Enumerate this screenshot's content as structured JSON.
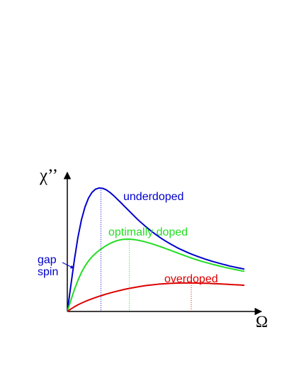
{
  "chart_data": {
    "type": "line",
    "ylabel": "χ’’",
    "xlabel": "Ω",
    "annotation": {
      "line1": "gap",
      "line2": "spin",
      "color": "#0000cc"
    },
    "series": [
      {
        "name": "underdoped",
        "color": "#0000cc",
        "x": [
          0,
          2,
          4,
          6,
          8,
          10,
          12,
          14,
          16,
          18,
          20,
          22,
          24,
          26,
          28,
          30,
          32,
          34,
          36,
          38,
          40,
          42,
          44,
          46,
          48,
          50,
          52,
          54,
          56,
          58,
          60,
          62,
          64,
          66,
          68,
          70,
          72,
          74,
          76,
          78,
          80,
          82,
          84,
          86,
          88,
          90,
          92,
          94,
          96,
          98,
          100
        ],
        "y": [
          0,
          21.2,
          42.1,
          60.4,
          74.8,
          85.2,
          92.5,
          97.1,
          99.7,
          100.6,
          100.3,
          99.1,
          97.1,
          94.6,
          91.8,
          89.0,
          86.1,
          83.2,
          80.3,
          77.4,
          74.6,
          72.0,
          69.5,
          67.1,
          64.8,
          62.7,
          60.6,
          58.7,
          56.9,
          55.2,
          53.6,
          52.0,
          50.6,
          49.3,
          48.0,
          46.8,
          45.7,
          44.6,
          43.6,
          42.6,
          41.7,
          40.8,
          40.0,
          39.2,
          38.4,
          37.7,
          36.9,
          36.3,
          35.7,
          35.1,
          34.5
        ],
        "peak_x": 19
      },
      {
        "name": "optimally doped",
        "color": "#22dd22",
        "x": [
          0,
          2,
          4,
          6,
          8,
          10,
          12,
          14,
          16,
          18,
          20,
          22,
          24,
          26,
          28,
          30,
          32,
          34,
          36,
          38,
          40,
          42,
          44,
          46,
          48,
          50,
          52,
          54,
          56,
          58,
          60,
          62,
          64,
          66,
          68,
          70,
          72,
          74,
          76,
          78,
          80,
          82,
          84,
          86,
          88,
          90,
          92,
          94,
          96,
          98,
          100
        ],
        "y": [
          0,
          9.1,
          17.8,
          25.4,
          31.8,
          37.0,
          41.2,
          44.6,
          47.4,
          49.8,
          51.8,
          53.7,
          55.3,
          56.6,
          57.7,
          58.4,
          58.8,
          58.9,
          58.8,
          58.5,
          58.0,
          57.4,
          56.7,
          55.9,
          55.0,
          54.1,
          53.1,
          52.1,
          51.0,
          50.0,
          48.9,
          47.8,
          46.7,
          45.6,
          44.6,
          43.6,
          42.6,
          41.7,
          40.8,
          40.0,
          39.2,
          38.4,
          37.7,
          37.0,
          36.3,
          35.6,
          35.0,
          34.4,
          33.8,
          33.2,
          32.7
        ],
        "peak_x": 35
      },
      {
        "name": "overdoped",
        "color": "#dd0000",
        "x": [
          0,
          2,
          4,
          6,
          8,
          10,
          12,
          14,
          16,
          18,
          20,
          22,
          24,
          26,
          28,
          30,
          32,
          34,
          36,
          38,
          40,
          42,
          44,
          46,
          48,
          50,
          52,
          54,
          56,
          58,
          60,
          62,
          64,
          66,
          68,
          70,
          72,
          74,
          76,
          78,
          80,
          82,
          84,
          86,
          88,
          90,
          92,
          94,
          96,
          98,
          100
        ],
        "y": [
          0,
          2.0,
          3.8,
          5.4,
          6.8,
          8.1,
          9.3,
          10.4,
          11.4,
          12.4,
          13.3,
          14.2,
          15.0,
          15.8,
          16.5,
          17.2,
          17.9,
          18.5,
          19.1,
          19.6,
          20.1,
          20.6,
          21.0,
          21.4,
          21.7,
          22.0,
          22.3,
          22.5,
          22.7,
          22.9,
          23.0,
          23.1,
          23.2,
          23.2,
          23.2,
          23.2,
          23.2,
          23.1,
          23.0,
          23.0,
          22.9,
          22.7,
          22.6,
          22.5,
          22.3,
          22.2,
          22.0,
          21.8,
          21.7,
          21.5,
          21.3
        ],
        "peak_x": 70
      }
    ]
  }
}
